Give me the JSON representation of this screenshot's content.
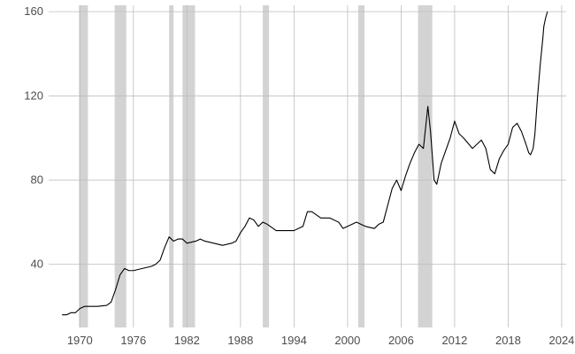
{
  "chart_data": {
    "type": "line",
    "title": "",
    "xlabel": "",
    "ylabel": "",
    "xlim": [
      1966.5,
      2024.5
    ],
    "ylim": [
      10,
      163
    ],
    "xticks": [
      1970,
      1976,
      1982,
      1988,
      1994,
      2000,
      2006,
      2012,
      2018,
      2024
    ],
    "yticks": [
      40,
      80,
      120,
      160
    ],
    "xtick_labels": [
      "1970",
      "1976",
      "1982",
      "1988",
      "1994",
      "2000",
      "2006",
      "2012",
      "2018",
      "2024"
    ],
    "ytick_labels": [
      "40",
      "80",
      "120",
      "160"
    ],
    "grid": true,
    "legend": "none",
    "recessions": [
      [
        1969.9,
        1970.9
      ],
      [
        1973.9,
        1975.2
      ],
      [
        1980.0,
        1980.5
      ],
      [
        1981.5,
        1982.9
      ],
      [
        1990.5,
        1991.2
      ],
      [
        2001.2,
        2001.9
      ],
      [
        2007.9,
        2009.5
      ]
    ],
    "series": [
      {
        "x": [
          1968.0,
          1968.5,
          1969.0,
          1969.5,
          1970.0,
          1970.5,
          1971.0,
          1972.0,
          1973.0,
          1973.5,
          1974.0,
          1974.5,
          1975.0,
          1975.5,
          1976.0,
          1977.0,
          1978.0,
          1978.5,
          1979.0,
          1979.5,
          1980.0,
          1980.5,
          1981.0,
          1981.5,
          1982.0,
          1983.0,
          1983.5,
          1984.0,
          1985.0,
          1986.0,
          1987.0,
          1987.5,
          1988.0,
          1988.5,
          1989.0,
          1989.5,
          1990.0,
          1990.5,
          1991.0,
          1992.0,
          1993.0,
          1994.0,
          1994.5,
          1995.0,
          1995.5,
          1996.0,
          1997.0,
          1998.0,
          1999.0,
          1999.5,
          2000.0,
          2001.0,
          2002.0,
          2003.0,
          2003.5,
          2004.0,
          2004.5,
          2005.0,
          2005.5,
          2006.0,
          2006.5,
          2007.0,
          2007.5,
          2008.0,
          2008.5,
          2009.0,
          2009.3,
          2009.7,
          2010.0,
          2010.5,
          2011.0,
          2011.5,
          2012.0,
          2012.5,
          2013.0,
          2014.0,
          2014.5,
          2015.0,
          2015.5,
          2016.0,
          2016.5,
          2017.0,
          2017.5,
          2018.0,
          2018.5,
          2019.0,
          2019.5,
          2020.0,
          2020.3,
          2020.5,
          2020.8,
          2021.0,
          2021.3,
          2021.6,
          2021.9,
          2022.0,
          2022.2,
          2022.4
        ],
        "y": [
          16.0,
          16.0,
          17.0,
          17.0,
          19.0,
          20.0,
          20.0,
          20.0,
          20.5,
          22.0,
          28.0,
          35.0,
          38.0,
          37.0,
          37.0,
          38.0,
          39.0,
          40.0,
          42.0,
          48.0,
          53.0,
          51.0,
          52.0,
          52.0,
          50.0,
          51.0,
          52.0,
          51.0,
          50.0,
          49.0,
          50.0,
          51.0,
          55.0,
          58.0,
          62.0,
          61.0,
          58.0,
          60.0,
          59.0,
          56.0,
          56.0,
          56.0,
          57.0,
          58.0,
          65.0,
          65.0,
          62.0,
          62.0,
          60.0,
          57.0,
          58.0,
          60.0,
          58.0,
          57.0,
          59.0,
          60.0,
          68.0,
          76.0,
          80.0,
          75.0,
          82.0,
          88.0,
          93.0,
          97.0,
          95.0,
          115.0,
          103.0,
          80.0,
          78.0,
          88.0,
          94.0,
          100.0,
          108.0,
          102.0,
          100.0,
          95.0,
          97.0,
          99.0,
          95.0,
          85.0,
          83.0,
          90.0,
          94.0,
          97.0,
          105.0,
          107.0,
          103.0,
          97.0,
          93.0,
          92.0,
          95.0,
          102.0,
          120.0,
          135.0,
          148.0,
          153.0,
          157.0,
          160.0
        ]
      }
    ]
  }
}
